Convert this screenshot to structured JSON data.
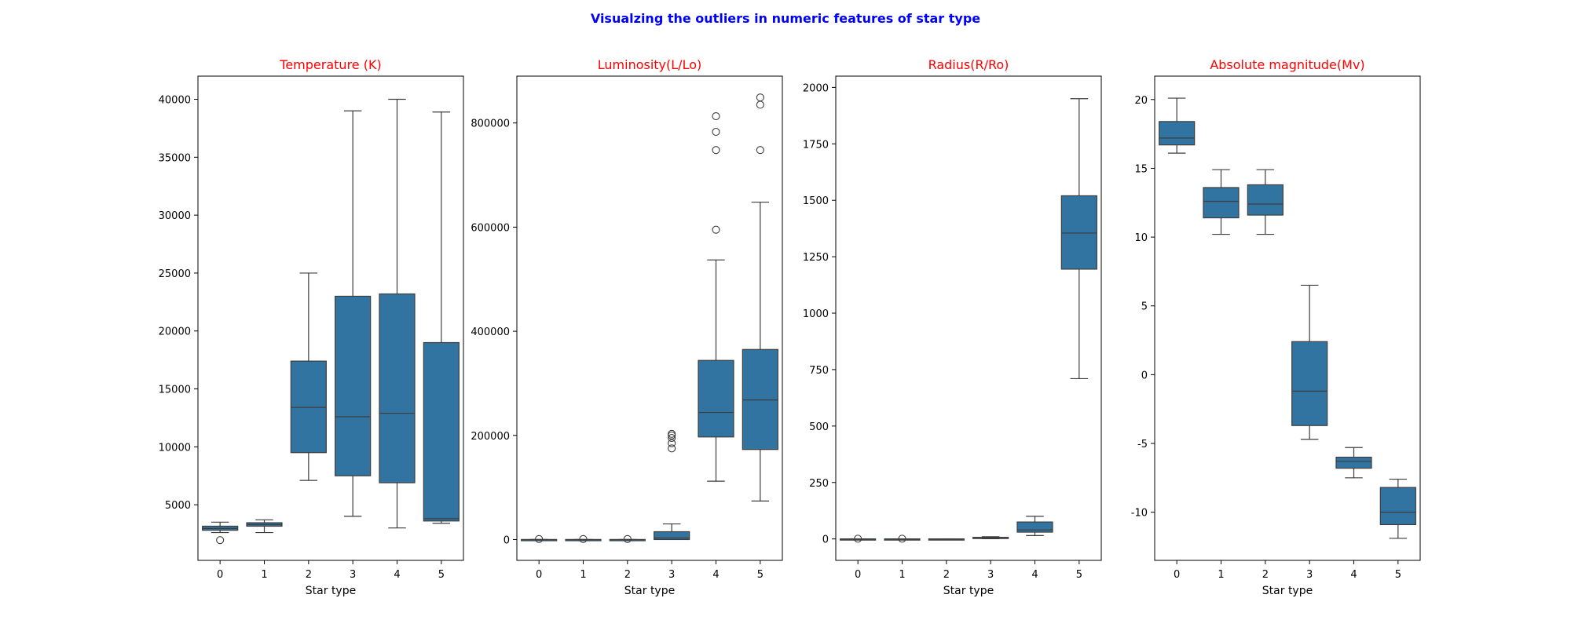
{
  "figure": {
    "suptitle": "Visualzing the outliers in numeric features of star type",
    "suptitle_color": "#0000ff",
    "panel_title_color": "#ff0000",
    "box_color": "#3274a1",
    "line_color": "#3d3d3d"
  },
  "chart_data": [
    {
      "type": "box",
      "title": "Temperature (K)",
      "xlabel": "Star type",
      "ylabel": "",
      "categories": [
        "0",
        "1",
        "2",
        "3",
        "4",
        "5"
      ],
      "ylim": [
        200,
        42000
      ],
      "yticks": [
        5000,
        10000,
        15000,
        20000,
        25000,
        30000,
        35000,
        40000
      ],
      "boxes": [
        {
          "whisker_low": 2600,
          "q1": 2800,
          "median": 2950,
          "q3": 3150,
          "whisker_high": 3500,
          "outliers": [
            1950
          ]
        },
        {
          "whisker_low": 2600,
          "q1": 3150,
          "median": 3300,
          "q3": 3450,
          "whisker_high": 3700,
          "outliers": []
        },
        {
          "whisker_low": 7100,
          "q1": 9500,
          "median": 13400,
          "q3": 17400,
          "whisker_high": 25000,
          "outliers": []
        },
        {
          "whisker_low": 4000,
          "q1": 7500,
          "median": 12600,
          "q3": 23000,
          "whisker_high": 39000,
          "outliers": []
        },
        {
          "whisker_low": 3000,
          "q1": 6900,
          "median": 12900,
          "q3": 23200,
          "whisker_high": 40000,
          "outliers": []
        },
        {
          "whisker_low": 3400,
          "q1": 3600,
          "median": 3800,
          "q3": 19000,
          "whisker_high": 38900,
          "outliers": []
        }
      ]
    },
    {
      "type": "box",
      "title": "Luminosity(L/Lo)",
      "xlabel": "Star type",
      "ylabel": "",
      "categories": [
        "0",
        "1",
        "2",
        "3",
        "4",
        "5"
      ],
      "ylim": [
        -40000,
        890000
      ],
      "yticks": [
        0,
        200000,
        400000,
        600000,
        800000
      ],
      "boxes": [
        {
          "whisker_low": 0,
          "q1": 0,
          "median": 0,
          "q3": 0,
          "whisker_high": 0,
          "outliers": [
            1000
          ]
        },
        {
          "whisker_low": 0,
          "q1": 0,
          "median": 0,
          "q3": 0,
          "whisker_high": 0,
          "outliers": [
            1000
          ]
        },
        {
          "whisker_low": 0,
          "q1": 0,
          "median": 0,
          "q3": 0,
          "whisker_high": 0,
          "outliers": [
            1000
          ]
        },
        {
          "whisker_low": 0,
          "q1": 0,
          "median": 3000,
          "q3": 15000,
          "whisker_high": 30000,
          "outliers": [
            175000,
            185000,
            195000,
            200000,
            203000
          ]
        },
        {
          "whisker_low": 112000,
          "q1": 197000,
          "median": 244000,
          "q3": 344000,
          "whisker_high": 537000,
          "outliers": [
            595000,
            748000,
            783000,
            813000
          ]
        },
        {
          "whisker_low": 74000,
          "q1": 173000,
          "median": 268000,
          "q3": 365000,
          "whisker_high": 648000,
          "outliers": [
            748000,
            835000,
            849000
          ]
        }
      ]
    },
    {
      "type": "box",
      "title": "Radius(R/Ro)",
      "xlabel": "Star type",
      "ylabel": "",
      "categories": [
        "0",
        "1",
        "2",
        "3",
        "4",
        "5"
      ],
      "ylim": [
        -95,
        2050
      ],
      "yticks": [
        0,
        250,
        500,
        750,
        1000,
        1250,
        1500,
        1750,
        2000
      ],
      "boxes": [
        {
          "whisker_low": 0,
          "q1": 0,
          "median": 0,
          "q3": 0,
          "whisker_high": 0,
          "outliers": [
            1
          ]
        },
        {
          "whisker_low": 0,
          "q1": 0,
          "median": 0,
          "q3": 0,
          "whisker_high": 0,
          "outliers": [
            1
          ]
        },
        {
          "whisker_low": 0,
          "q1": 0,
          "median": 0,
          "q3": 0,
          "whisker_high": 0,
          "outliers": []
        },
        {
          "whisker_low": 1,
          "q1": 2,
          "median": 4,
          "q3": 7,
          "whisker_high": 10,
          "outliers": []
        },
        {
          "whisker_low": 15,
          "q1": 30,
          "median": 40,
          "q3": 75,
          "whisker_high": 100,
          "outliers": []
        },
        {
          "whisker_low": 710,
          "q1": 1195,
          "median": 1355,
          "q3": 1520,
          "whisker_high": 1950,
          "outliers": []
        }
      ]
    },
    {
      "type": "box",
      "title": "Absolute magnitude(Mv)",
      "xlabel": "Star type",
      "ylabel": "",
      "categories": [
        "0",
        "1",
        "2",
        "3",
        "4",
        "5"
      ],
      "ylim": [
        -13.5,
        21.7
      ],
      "yticks": [
        -10,
        -5,
        0,
        5,
        10,
        15,
        20
      ],
      "boxes": [
        {
          "whisker_low": 16.1,
          "q1": 16.7,
          "median": 17.2,
          "q3": 18.4,
          "whisker_high": 20.1,
          "outliers": []
        },
        {
          "whisker_low": 10.2,
          "q1": 11.4,
          "median": 12.6,
          "q3": 13.6,
          "whisker_high": 14.9,
          "outliers": []
        },
        {
          "whisker_low": 10.2,
          "q1": 11.6,
          "median": 12.4,
          "q3": 13.8,
          "whisker_high": 14.9,
          "outliers": []
        },
        {
          "whisker_low": -4.7,
          "q1": -3.7,
          "median": -1.2,
          "q3": 2.4,
          "whisker_high": 6.5,
          "outliers": []
        },
        {
          "whisker_low": -7.5,
          "q1": -6.8,
          "median": -6.3,
          "q3": -6.0,
          "whisker_high": -5.3,
          "outliers": []
        },
        {
          "whisker_low": -11.9,
          "q1": -10.9,
          "median": -10.0,
          "q3": -8.2,
          "whisker_high": -7.6,
          "outliers": []
        }
      ]
    }
  ]
}
